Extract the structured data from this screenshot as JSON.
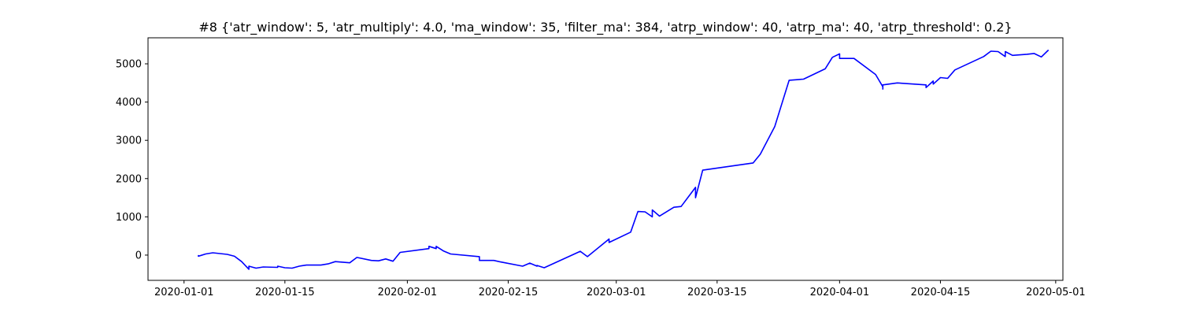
{
  "chart_data": {
    "type": "line",
    "title": "#8 {'atr_window': 5, 'atr_multiply': 4.0, 'ma_window': 35, 'filter_ma': 384, 'atrp_window': 40, 'atrp_ma': 40, 'atrp_threshold': 0.2}",
    "xlabel": "",
    "ylabel": "",
    "x_axis_type": "date",
    "xlim": [
      "2019-12-27",
      "2020-05-02"
    ],
    "ylim": [
      -660,
      5680
    ],
    "grid": false,
    "line_color": "#0000ff",
    "xticks": [
      "2020-01-01",
      "2020-01-15",
      "2020-02-01",
      "2020-02-15",
      "2020-03-01",
      "2020-03-15",
      "2020-04-01",
      "2020-04-15",
      "2020-05-01"
    ],
    "yticks": [
      0,
      1000,
      2000,
      3000,
      4000,
      5000
    ],
    "series": [
      {
        "name": "",
        "x": [
          "2020-01-03",
          "2020-01-03",
          "2020-01-04",
          "2020-01-05",
          "2020-01-07",
          "2020-01-08",
          "2020-01-09",
          "2020-01-10",
          "2020-01-10",
          "2020-01-11",
          "2020-01-12",
          "2020-01-14",
          "2020-01-14",
          "2020-01-15",
          "2020-01-16",
          "2020-01-17",
          "2020-01-18",
          "2020-01-20",
          "2020-01-21",
          "2020-01-22",
          "2020-01-24",
          "2020-01-25",
          "2020-01-27",
          "2020-01-28",
          "2020-01-29",
          "2020-01-30",
          "2020-01-31",
          "2020-02-04",
          "2020-02-04",
          "2020-02-05",
          "2020-02-05",
          "2020-02-06",
          "2020-02-07",
          "2020-02-11",
          "2020-02-11",
          "2020-02-13",
          "2020-02-14",
          "2020-02-17",
          "2020-02-18",
          "2020-02-19",
          "2020-02-19",
          "2020-02-20",
          "2020-02-25",
          "2020-02-26",
          "2020-02-29",
          "2020-02-29",
          "2020-03-03",
          "2020-03-04",
          "2020-03-05",
          "2020-03-06",
          "2020-03-06",
          "2020-03-07",
          "2020-03-09",
          "2020-03-10",
          "2020-03-12",
          "2020-03-12",
          "2020-03-13",
          "2020-03-20",
          "2020-03-21",
          "2020-03-23",
          "2020-03-25",
          "2020-03-27",
          "2020-03-27",
          "2020-03-30",
          "2020-03-31",
          "2020-04-01",
          "2020-04-01",
          "2020-04-03",
          "2020-04-06",
          "2020-04-07",
          "2020-04-07",
          "2020-04-07",
          "2020-04-09",
          "2020-04-13",
          "2020-04-13",
          "2020-04-14",
          "2020-04-14",
          "2020-04-15",
          "2020-04-16",
          "2020-04-17",
          "2020-04-21",
          "2020-04-22",
          "2020-04-23",
          "2020-04-24",
          "2020-04-24",
          "2020-04-25",
          "2020-04-27",
          "2020-04-28",
          "2020-04-29",
          "2020-04-30"
        ],
        "values": [
          0,
          -30,
          30,
          60,
          20,
          -30,
          -170,
          -370,
          -290,
          -340,
          -310,
          -320,
          -290,
          -330,
          -340,
          -290,
          -260,
          -260,
          -230,
          -170,
          -200,
          -60,
          -140,
          -150,
          -100,
          -160,
          70,
          170,
          230,
          170,
          230,
          110,
          30,
          -40,
          -140,
          -140,
          -180,
          -290,
          -210,
          -290,
          -270,
          -330,
          100,
          -40,
          420,
          330,
          600,
          1140,
          1130,
          1000,
          1180,
          1020,
          1250,
          1270,
          1770,
          1500,
          2220,
          2410,
          2640,
          3360,
          4570,
          4600,
          4600,
          4870,
          5170,
          5260,
          5140,
          5140,
          4720,
          4400,
          4340,
          4450,
          4500,
          4450,
          4380,
          4550,
          4470,
          4640,
          4620,
          4840,
          5190,
          5330,
          5320,
          5190,
          5320,
          5220,
          5250,
          5270,
          5180,
          5360
        ]
      }
    ]
  }
}
